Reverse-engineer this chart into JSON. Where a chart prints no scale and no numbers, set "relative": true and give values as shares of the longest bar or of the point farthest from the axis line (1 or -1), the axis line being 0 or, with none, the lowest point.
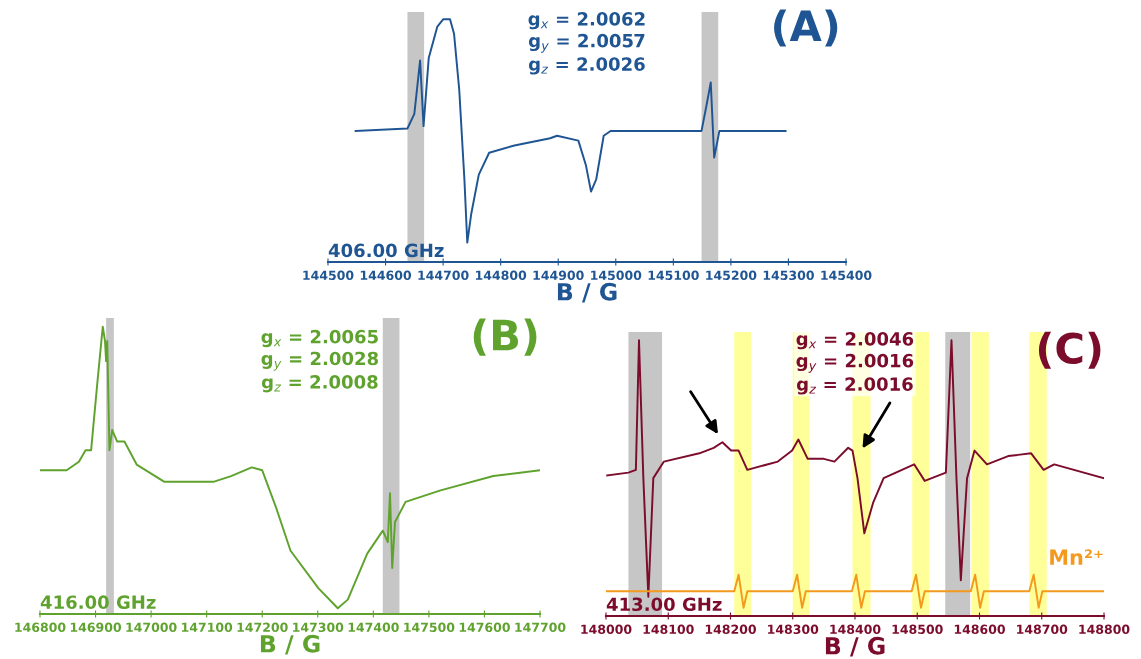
{
  "chart_data": [
    {
      "type": "line",
      "title": "(A)",
      "xlabel": "B / G",
      "relative": true,
      "tick_labels": "x",
      "xlim": [
        144500,
        145400
      ],
      "xticks": [
        144500,
        144600,
        144700,
        144800,
        144900,
        145000,
        145100,
        145200,
        145300,
        145400
      ],
      "annotations": [
        "g$_{x}$ = 2.0062\ng$_{y}$ = 2.0057\ng$_{z}$ = 2.0026",
        "406.00 GHz"
      ],
      "bands": [
        {
          "axis": "x",
          "from": 144638,
          "to": 144667,
          "label": null,
          "color": "#a0a0a0"
        },
        {
          "axis": "x",
          "from": 145149,
          "to": 145178,
          "label": null,
          "color": "#a0a0a0"
        }
      ],
      "series": [
        {
          "color": "#1f5592",
          "x": [
            144548,
            144638,
            144650,
            144660,
            144666,
            144675,
            144690,
            144700,
            144712,
            144719,
            144728,
            144737,
            144742,
            144749,
            144762,
            144780,
            144824,
            144886,
            144898,
            144935,
            144948,
            144957,
            144966,
            144979,
            144991,
            145072,
            145149,
            145158,
            145165,
            145171,
            145180,
            145295
          ],
          "values": [
            0.54,
            0.55,
            0.61,
            0.83,
            0.56,
            0.84,
            0.97,
            1.0,
            1.0,
            0.94,
            0.71,
            0.34,
            0.08,
            0.2,
            0.36,
            0.45,
            0.48,
            0.51,
            0.52,
            0.5,
            0.4,
            0.29,
            0.34,
            0.52,
            0.54,
            0.54,
            0.54,
            0.65,
            0.74,
            0.43,
            0.54,
            0.54
          ]
        }
      ]
    },
    {
      "type": "line",
      "title": "(B)",
      "xlabel": "B / G",
      "relative": true,
      "tick_labels": "x",
      "xlim": [
        146800,
        147700
      ],
      "xticks": [
        146800,
        146900,
        147000,
        147100,
        147200,
        147300,
        147400,
        147500,
        147600,
        147700
      ],
      "annotations": [
        "g$_{x}$ = 2.0065\ng$_{y}$ = 2.0028\ng$_{z}$ = 2.0008",
        "416.00 GHz"
      ],
      "bands": [
        {
          "axis": "x",
          "from": 146919,
          "to": 146933,
          "label": null,
          "color": "#a0a0a0"
        },
        {
          "axis": "x",
          "from": 147417,
          "to": 147447,
          "label": null,
          "color": "#a0a0a0"
        }
      ],
      "series": [
        {
          "color": "#5fa32e",
          "x": [
            146800,
            146848,
            146870,
            146882,
            146892,
            146903,
            146913,
            146917,
            146919,
            146921,
            146925,
            146930,
            146939,
            146952,
            146974,
            147024,
            147112,
            147144,
            147181,
            147200,
            147225,
            147251,
            147301,
            147336,
            147354,
            147389,
            147417,
            147426,
            147430,
            147434,
            147439,
            147458,
            147521,
            147616,
            147700
          ],
          "values": [
            0.5,
            0.5,
            0.53,
            0.57,
            0.57,
            0.8,
            1.0,
            0.95,
            0.88,
            0.95,
            0.57,
            0.64,
            0.6,
            0.6,
            0.52,
            0.46,
            0.46,
            0.48,
            0.51,
            0.5,
            0.37,
            0.22,
            0.09,
            0.02,
            0.05,
            0.21,
            0.29,
            0.25,
            0.42,
            0.16,
            0.32,
            0.39,
            0.43,
            0.48,
            0.5
          ]
        }
      ]
    },
    {
      "type": "line",
      "title": "(C)",
      "xlabel": "B / G",
      "relative": true,
      "tick_labels": "x",
      "xlim": [
        148000,
        148800
      ],
      "xticks": [
        148000,
        148100,
        148200,
        148300,
        148400,
        148500,
        148600,
        148700,
        148800
      ],
      "annotations": [
        "g$_{x}$ = 2.0046\ng$_{y}$ = 2.0016\ng$_{z}$ = 2.0016",
        "413.00 GHz"
      ],
      "bands": [
        {
          "axis": "x",
          "from": 148036,
          "to": 148090,
          "label": null,
          "color": "#a0a0a0"
        },
        {
          "axis": "x",
          "from": 148545,
          "to": 148585,
          "label": null,
          "color": "#a0a0a0"
        },
        {
          "axis": "x",
          "from": 148206,
          "to": 148233,
          "label": null,
          "color": "#ffff55"
        },
        {
          "axis": "x",
          "from": 148300,
          "to": 148327,
          "label": null,
          "color": "#ffff55"
        },
        {
          "axis": "x",
          "from": 148396,
          "to": 148425,
          "label": null,
          "color": "#ffff55"
        },
        {
          "axis": "x",
          "from": 148492,
          "to": 148519,
          "label": null,
          "color": "#ffff55"
        },
        {
          "axis": "x",
          "from": 148587,
          "to": 148615,
          "label": null,
          "color": "#ffff55"
        },
        {
          "axis": "x",
          "from": 148680,
          "to": 148708,
          "label": null,
          "color": "#ffff55"
        }
      ],
      "series": [
        {
          "color": "#7c0c2c",
          "x": [
            148002,
            148036,
            148048,
            148053,
            148060,
            148068,
            148076,
            148093,
            148150,
            148173,
            148187,
            148201,
            148213,
            148227,
            148276,
            148299,
            148309,
            148324,
            148350,
            148367,
            148389,
            148396,
            148404,
            148415,
            148429,
            148446,
            148495,
            148512,
            148546,
            148555,
            148563,
            148570,
            148580,
            148592,
            148612,
            148646,
            148683,
            148703,
            148720,
            148800
          ],
          "values": [
            0.51,
            0.52,
            0.53,
            1.0,
            0.5,
            0.07,
            0.5,
            0.56,
            0.59,
            0.61,
            0.63,
            0.6,
            0.6,
            0.53,
            0.56,
            0.6,
            0.64,
            0.57,
            0.57,
            0.56,
            0.61,
            0.6,
            0.5,
            0.3,
            0.41,
            0.5,
            0.55,
            0.49,
            0.52,
            1.0,
            0.5,
            0.13,
            0.5,
            0.6,
            0.55,
            0.58,
            0.59,
            0.53,
            0.55,
            0.5
          ]
        },
        {
          "name": "Mn²⁺",
          "color": "#f39a1e",
          "x": [
            148000,
            148206,
            148213,
            148217,
            148221,
            148227,
            148300,
            148307,
            148311,
            148315,
            148321,
            148395,
            148402,
            148406,
            148410,
            148416,
            148491,
            148498,
            148502,
            148506,
            148512,
            148586,
            148593,
            148597,
            148601,
            148607,
            148680,
            148687,
            148691,
            148695,
            148701,
            148800
          ],
          "values": [
            0.09,
            0.09,
            0.15,
            0.09,
            0.03,
            0.09,
            0.09,
            0.15,
            0.09,
            0.03,
            0.09,
            0.09,
            0.15,
            0.09,
            0.03,
            0.09,
            0.09,
            0.15,
            0.09,
            0.03,
            0.09,
            0.09,
            0.15,
            0.09,
            0.03,
            0.09,
            0.09,
            0.15,
            0.09,
            0.03,
            0.09,
            0.09
          ]
        }
      ]
    }
  ]
}
